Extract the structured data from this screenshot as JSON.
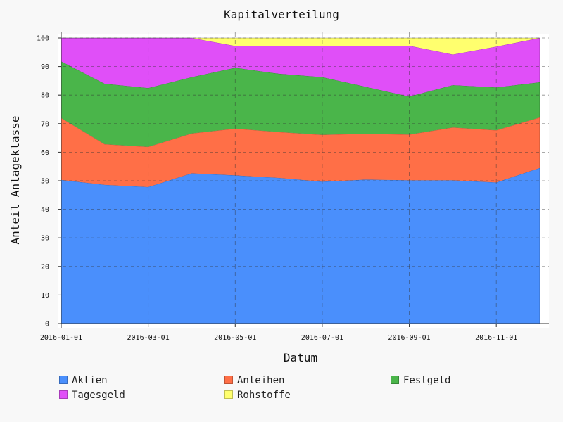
{
  "chart_data": {
    "type": "area",
    "stacked": true,
    "title": "Kapitalverteilung",
    "xlabel": "Datum",
    "ylabel": "Anteil Anlageklasse",
    "ylim": [
      0,
      100
    ],
    "yticks": [
      0,
      10,
      20,
      30,
      40,
      50,
      60,
      70,
      80,
      90,
      100
    ],
    "x": [
      "2016-01-01",
      "2016-02-01",
      "2016-03-01",
      "2016-04-01",
      "2016-05-01",
      "2016-06-01",
      "2016-07-01",
      "2016-08-01",
      "2016-09-01",
      "2016-10-01",
      "2016-11-01",
      "2016-12-01"
    ],
    "xticks": [
      "2016-01-01",
      "2016-03-01",
      "2016-05-01",
      "2016-07-01",
      "2016-09-01",
      "2016-11-01"
    ],
    "grid": true,
    "legend_position": "bottom",
    "series": [
      {
        "name": "Aktien",
        "color": "#4a8ffc",
        "values": [
          50.3,
          48.6,
          47.8,
          52.6,
          51.9,
          51.0,
          49.7,
          50.4,
          50.2,
          50.2,
          49.4,
          54.5
        ]
      },
      {
        "name": "Anleihen",
        "color": "#ff6f47",
        "values": [
          21.7,
          14.2,
          14.1,
          14.0,
          16.4,
          16.1,
          16.4,
          16.1,
          16.0,
          18.5,
          18.3,
          17.7
        ]
      },
      {
        "name": "Festgeld",
        "color": "#4ab54a",
        "values": [
          19.8,
          21.2,
          20.6,
          19.7,
          21.3,
          20.4,
          20.2,
          16.4,
          13.3,
          14.8,
          15.0,
          12.3
        ]
      },
      {
        "name": "Tagesgeld",
        "color": "#e04ff8",
        "values": [
          8.2,
          16.0,
          17.5,
          13.7,
          7.6,
          9.7,
          10.9,
          14.4,
          17.8,
          10.7,
          14.3,
          15.5
        ]
      },
      {
        "name": "Rohstoffe",
        "color": "#ffff6e",
        "values": [
          0.0,
          0.0,
          0.0,
          0.0,
          2.8,
          2.8,
          2.8,
          2.7,
          2.7,
          5.8,
          3.0,
          0.0
        ]
      }
    ]
  }
}
